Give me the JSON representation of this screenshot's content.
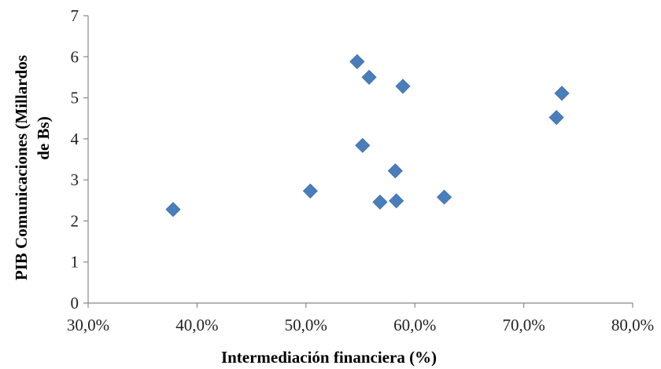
{
  "chart_data": {
    "type": "scatter",
    "title": "",
    "xlabel": "Intermediación  financiera (%)",
    "ylabel_line1": "PIB Comunicaciones (Millardos",
    "ylabel_line2": "de Bs)",
    "xlim": [
      0.3,
      0.8
    ],
    "ylim": [
      0,
      7
    ],
    "x_ticks": [
      0.3,
      0.4,
      0.5,
      0.6,
      0.7,
      0.8
    ],
    "x_tick_labels": [
      "30,0%",
      "40,0%",
      "50,0%",
      "60,0%",
      "70,0%",
      "80,0%"
    ],
    "y_ticks": [
      0,
      1,
      2,
      3,
      4,
      5,
      6,
      7
    ],
    "y_tick_labels": [
      "0",
      "1",
      "2",
      "3",
      "4",
      "5",
      "6",
      "7"
    ],
    "grid": false,
    "legend": "none",
    "marker": "diamond",
    "marker_color": "#4a7ebb",
    "points": [
      {
        "x": 0.378,
        "y": 2.28
      },
      {
        "x": 0.504,
        "y": 2.73
      },
      {
        "x": 0.547,
        "y": 5.88
      },
      {
        "x": 0.552,
        "y": 3.84
      },
      {
        "x": 0.558,
        "y": 5.5
      },
      {
        "x": 0.568,
        "y": 2.46
      },
      {
        "x": 0.582,
        "y": 3.22
      },
      {
        "x": 0.583,
        "y": 2.49
      },
      {
        "x": 0.589,
        "y": 5.28
      },
      {
        "x": 0.627,
        "y": 2.58
      },
      {
        "x": 0.73,
        "y": 4.52
      },
      {
        "x": 0.735,
        "y": 5.11
      }
    ]
  }
}
